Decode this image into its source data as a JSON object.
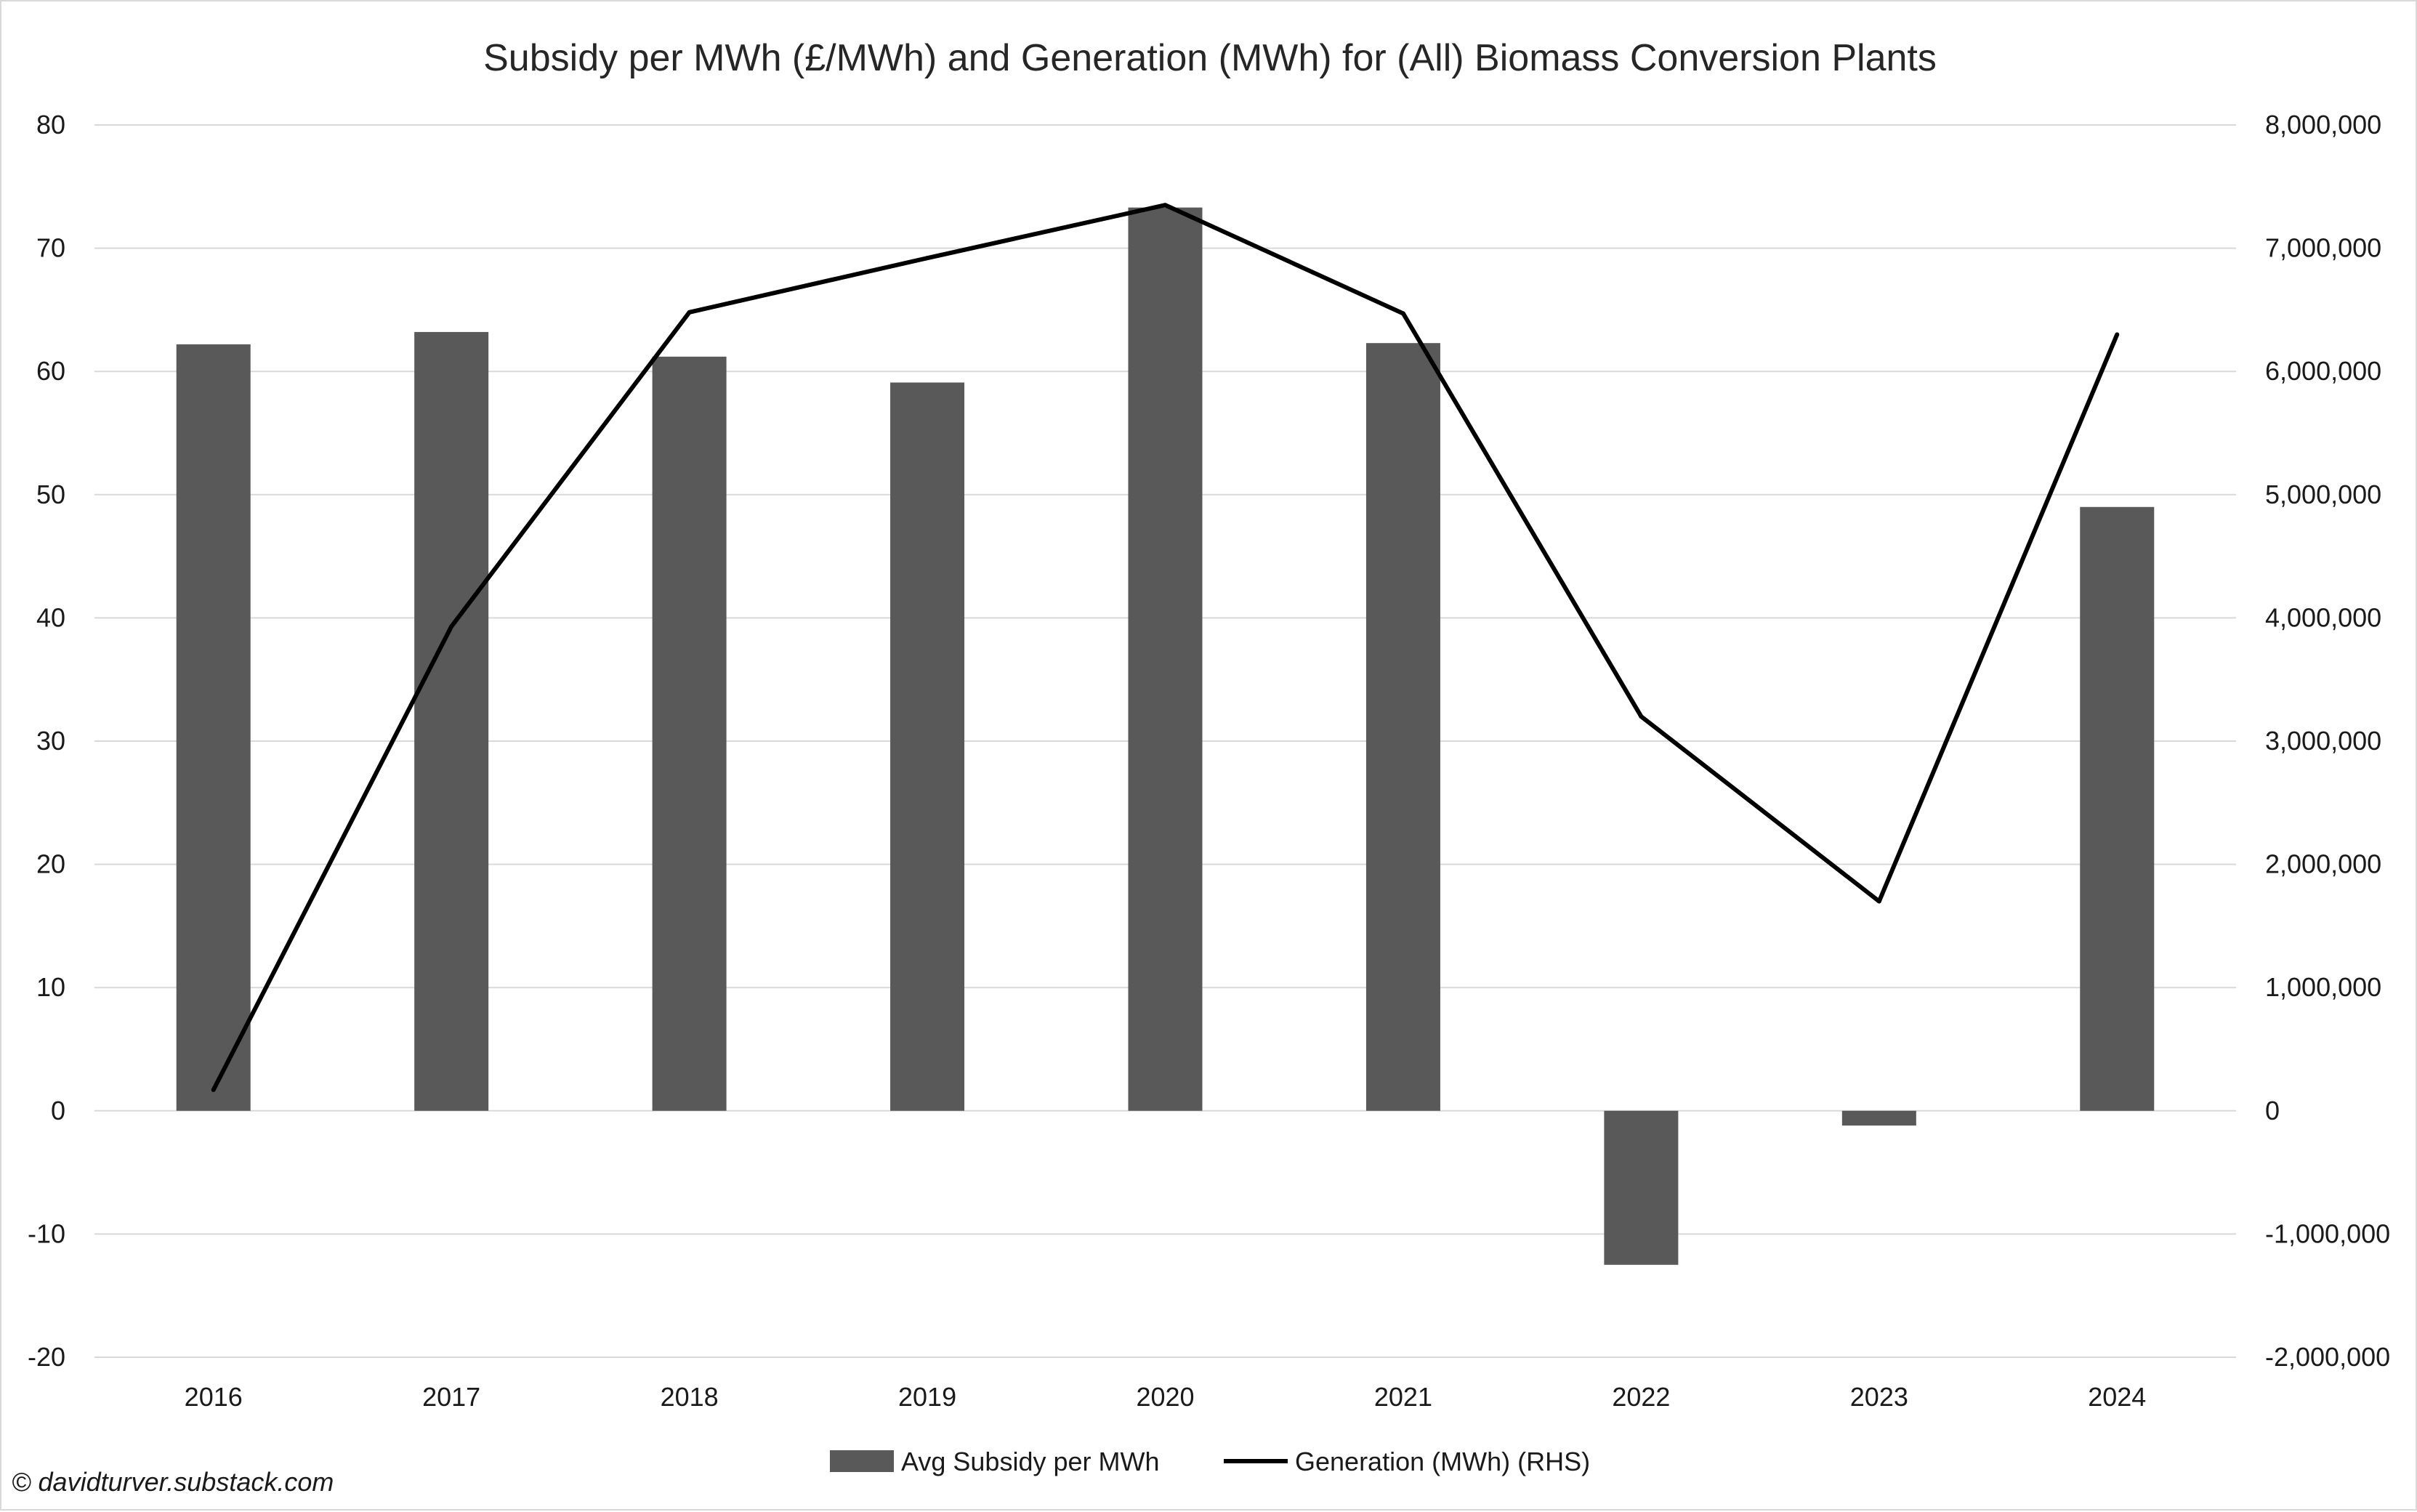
{
  "chart_data": {
    "type": "bar",
    "title": "Subsidy per MWh (£/MWh) and Generation (MWh) for (All) Biomass Conversion Plants",
    "categories": [
      "2016",
      "2017",
      "2018",
      "2019",
      "2020",
      "2021",
      "2022",
      "2023",
      "2024"
    ],
    "series": [
      {
        "name": "Avg Subsidy per MWh",
        "type": "bar",
        "axis": "left",
        "color": "#595959",
        "values": [
          62.2,
          63.2,
          61.2,
          59.1,
          73.3,
          62.3,
          -12.5,
          -1.2,
          49.0
        ]
      },
      {
        "name": "Generation (MWh) (RHS)",
        "type": "line",
        "axis": "right",
        "color": "#000000",
        "values": [
          170000,
          3930000,
          6480000,
          6920000,
          7350000,
          6470000,
          3200000,
          1700000,
          6300000
        ]
      }
    ],
    "y_left": {
      "lim": [
        -20,
        80
      ],
      "ticks": [
        "-20",
        "-10",
        "0",
        "10",
        "20",
        "30",
        "40",
        "50",
        "60",
        "70",
        "80"
      ]
    },
    "y_right": {
      "lim": [
        -2000000,
        8000000
      ],
      "ticks": [
        "-2,000,000",
        "-1,000,000",
        "0",
        "1,000,000",
        "2,000,000",
        "3,000,000",
        "4,000,000",
        "5,000,000",
        "6,000,000",
        "7,000,000",
        "8,000,000"
      ]
    },
    "grid": true,
    "legend_position": "bottom"
  },
  "credit": "© davidturver.substack.com"
}
